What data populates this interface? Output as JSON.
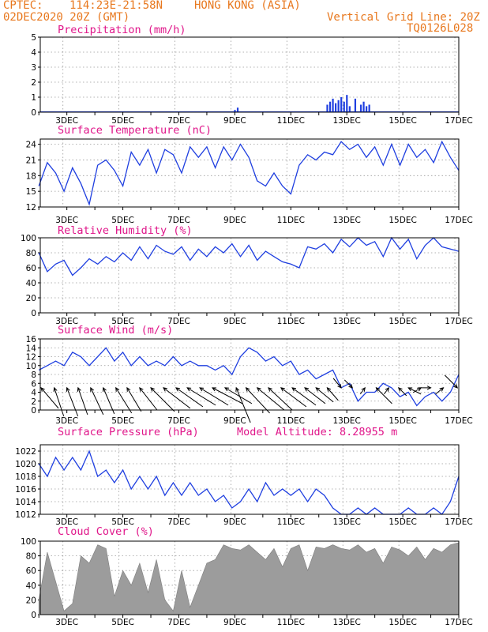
{
  "header": {
    "source": "CPTEC:",
    "coords": "114:23E-21:58N",
    "location": "HONG KONG (ASIA)",
    "datetime": "02DEC2020 20Z (GMT)",
    "grid_note": "Vertical Grid Line: 20Z",
    "code": "TQ0126L028"
  },
  "x_axis": {
    "labels": [
      "3DEC",
      "5DEC",
      "7DEC",
      "9DEC",
      "11DEC",
      "13DEC",
      "15DEC",
      "17DEC"
    ]
  },
  "colors": {
    "header": "#e8781e",
    "panel_title": "#e0168a",
    "series": "#1f3fe0",
    "cloud_fill": "#9c9c9c",
    "wind_arrows": "#000000"
  },
  "chart_data": [
    {
      "type": "bar",
      "title": "Precipitation (mm/h)",
      "ylim": [
        0,
        5
      ],
      "yticks": [
        0,
        1,
        2,
        3,
        4,
        5
      ],
      "x": [
        9.0,
        9.1,
        12.3,
        12.4,
        12.5,
        12.6,
        12.7,
        12.8,
        12.9,
        13.0,
        13.1,
        13.3,
        13.5,
        13.6,
        13.7,
        13.8
      ],
      "values": [
        0.15,
        0.3,
        0.5,
        0.7,
        0.9,
        0.6,
        0.8,
        1.0,
        0.7,
        1.15,
        0.4,
        0.9,
        0.5,
        0.7,
        0.4,
        0.5
      ]
    },
    {
      "type": "line",
      "title": "Surface Temperature (nC)",
      "ylim": [
        12,
        25
      ],
      "yticks": [
        12,
        15,
        18,
        21,
        24
      ],
      "x": [
        2.0,
        2.3,
        2.6,
        2.9,
        3.2,
        3.5,
        3.8,
        4.1,
        4.4,
        4.7,
        5.0,
        5.3,
        5.6,
        5.9,
        6.2,
        6.5,
        6.8,
        7.1,
        7.4,
        7.7,
        8.0,
        8.3,
        8.6,
        8.9,
        9.2,
        9.5,
        9.8,
        10.1,
        10.4,
        10.7,
        11.0,
        11.3,
        11.6,
        11.9,
        12.2,
        12.5,
        12.8,
        13.1,
        13.4,
        13.7,
        14.0,
        14.3,
        14.6,
        14.9,
        15.2,
        15.5,
        15.8,
        16.1,
        16.4,
        16.7,
        17.0
      ],
      "values": [
        16,
        20.5,
        18.5,
        15,
        19.5,
        16.5,
        12.5,
        20,
        21,
        19,
        16,
        22.5,
        20,
        23,
        18.5,
        23,
        22,
        18.5,
        23.5,
        21.5,
        23.5,
        19.5,
        23.5,
        21,
        24,
        21.5,
        17,
        16,
        18.5,
        16,
        14.5,
        20,
        22,
        21,
        22.5,
        22,
        24.5,
        23,
        24,
        21.5,
        23.5,
        20,
        24,
        20,
        24,
        21.5,
        23,
        20.5,
        24.5,
        21.5,
        19
      ]
    },
    {
      "type": "line",
      "title": "Relative Humidity (%)",
      "ylim": [
        0,
        100
      ],
      "yticks": [
        0,
        20,
        40,
        60,
        80,
        100
      ],
      "x": [
        2.0,
        2.3,
        2.6,
        2.9,
        3.2,
        3.5,
        3.8,
        4.1,
        4.4,
        4.7,
        5.0,
        5.3,
        5.6,
        5.9,
        6.2,
        6.5,
        6.8,
        7.1,
        7.4,
        7.7,
        8.0,
        8.3,
        8.6,
        8.9,
        9.2,
        9.5,
        9.8,
        10.1,
        10.4,
        10.7,
        11.0,
        11.3,
        11.6,
        11.9,
        12.2,
        12.5,
        12.8,
        13.1,
        13.4,
        13.7,
        14.0,
        14.3,
        14.6,
        14.9,
        15.2,
        15.5,
        15.8,
        16.1,
        16.4,
        16.7,
        17.0
      ],
      "values": [
        80,
        55,
        65,
        70,
        50,
        60,
        72,
        65,
        75,
        68,
        80,
        70,
        88,
        72,
        90,
        82,
        78,
        88,
        70,
        85,
        75,
        88,
        80,
        92,
        75,
        90,
        70,
        82,
        75,
        68,
        65,
        60,
        88,
        85,
        92,
        80,
        98,
        88,
        100,
        90,
        95,
        75,
        100,
        85,
        98,
        72,
        90,
        100,
        88,
        85,
        82
      ]
    },
    {
      "type": "line",
      "title": "Surface Wind (m/s)",
      "ylim": [
        0,
        16
      ],
      "yticks": [
        0,
        2,
        4,
        6,
        8,
        10,
        12,
        14,
        16
      ],
      "x": [
        2.0,
        2.3,
        2.6,
        2.9,
        3.2,
        3.5,
        3.8,
        4.1,
        4.4,
        4.7,
        5.0,
        5.3,
        5.6,
        5.9,
        6.2,
        6.5,
        6.8,
        7.1,
        7.4,
        7.7,
        8.0,
        8.3,
        8.6,
        8.9,
        9.2,
        9.5,
        9.8,
        10.1,
        10.4,
        10.7,
        11.0,
        11.3,
        11.6,
        11.9,
        12.2,
        12.5,
        12.8,
        13.1,
        13.4,
        13.7,
        14.0,
        14.3,
        14.6,
        14.9,
        15.2,
        15.5,
        15.8,
        16.1,
        16.4,
        16.7,
        17.0
      ],
      "values": [
        9,
        10,
        11,
        10,
        13,
        12,
        10,
        12,
        14,
        11,
        13,
        10,
        12,
        10,
        11,
        10,
        12,
        10,
        11,
        10,
        10,
        9,
        10,
        8,
        12,
        14,
        13,
        11,
        12,
        10,
        11,
        8,
        9,
        7,
        8,
        9,
        5,
        6,
        2,
        4,
        4,
        6,
        5,
        3,
        4,
        1,
        3,
        4,
        2,
        4,
        8
      ],
      "wind_arrows": [
        {
          "x": 2.08,
          "dx": 22,
          "dy": -26
        },
        {
          "x": 2.55,
          "dx": 12,
          "dy": -36
        },
        {
          "x": 3.0,
          "dx": 14,
          "dy": -36
        },
        {
          "x": 3.4,
          "dx": 12,
          "dy": -34
        },
        {
          "x": 3.85,
          "dx": 16,
          "dy": -34
        },
        {
          "x": 4.3,
          "dx": 14,
          "dy": -33
        },
        {
          "x": 4.75,
          "dx": 20,
          "dy": -32
        },
        {
          "x": 5.15,
          "dx": 18,
          "dy": -30
        },
        {
          "x": 5.6,
          "dx": 22,
          "dy": -28
        },
        {
          "x": 6.0,
          "dx": 30,
          "dy": -30
        },
        {
          "x": 6.45,
          "dx": 34,
          "dy": -26
        },
        {
          "x": 6.9,
          "dx": 34,
          "dy": -24
        },
        {
          "x": 7.3,
          "dx": 36,
          "dy": -22
        },
        {
          "x": 7.75,
          "dx": 36,
          "dy": -22
        },
        {
          "x": 8.2,
          "dx": 38,
          "dy": -20
        },
        {
          "x": 8.65,
          "dx": 34,
          "dy": -20
        },
        {
          "x": 9.05,
          "dx": 18,
          "dy": -44
        },
        {
          "x": 9.4,
          "dx": 30,
          "dy": -32
        },
        {
          "x": 9.8,
          "dx": 34,
          "dy": -28
        },
        {
          "x": 10.2,
          "dx": 30,
          "dy": -28
        },
        {
          "x": 10.65,
          "dx": 32,
          "dy": -24
        },
        {
          "x": 11.05,
          "dx": 30,
          "dy": -22
        },
        {
          "x": 11.5,
          "dx": 26,
          "dy": -20
        },
        {
          "x": 11.9,
          "dx": 22,
          "dy": -18
        },
        {
          "x": 12.3,
          "dx": 14,
          "dy": -16
        },
        {
          "x": 12.8,
          "dx": -10,
          "dy": 12
        },
        {
          "x": 13.2,
          "dx": -10,
          "dy": 10
        },
        {
          "x": 13.65,
          "dx": -6,
          "dy": -8
        },
        {
          "x": 14.05,
          "dx": 20,
          "dy": -20
        },
        {
          "x": 14.5,
          "dx": -6,
          "dy": -8
        },
        {
          "x": 14.85,
          "dx": 10,
          "dy": -10
        },
        {
          "x": 15.2,
          "dx": 16,
          "dy": -8
        },
        {
          "x": 15.65,
          "dx": -10,
          "dy": -6
        },
        {
          "x": 16.0,
          "dx": -16,
          "dy": 0
        },
        {
          "x": 16.45,
          "dx": -10,
          "dy": -8
        },
        {
          "x": 16.95,
          "dx": -16,
          "dy": 16
        }
      ]
    },
    {
      "type": "line",
      "title": "Surface Pressure (hPa)",
      "annotation": "Model Altitude: 8.28955 m",
      "ylim": [
        1012,
        1023
      ],
      "yticks": [
        1012,
        1014,
        1016,
        1018,
        1020,
        1022
      ],
      "x": [
        2.0,
        2.3,
        2.6,
        2.9,
        3.2,
        3.5,
        3.8,
        4.1,
        4.4,
        4.7,
        5.0,
        5.3,
        5.6,
        5.9,
        6.2,
        6.5,
        6.8,
        7.1,
        7.4,
        7.7,
        8.0,
        8.3,
        8.6,
        8.9,
        9.2,
        9.5,
        9.8,
        10.1,
        10.4,
        10.7,
        11.0,
        11.3,
        11.6,
        11.9,
        12.2,
        12.5,
        12.8,
        13.1,
        13.4,
        13.7,
        14.0,
        14.3,
        14.6,
        14.9,
        15.2,
        15.5,
        15.8,
        16.1,
        16.4,
        16.7,
        17.0
      ],
      "values": [
        1020,
        1018,
        1021,
        1019,
        1021,
        1019,
        1022,
        1018,
        1019,
        1017,
        1019,
        1016,
        1018,
        1016,
        1018,
        1015,
        1017,
        1015,
        1017,
        1015,
        1016,
        1014,
        1015,
        1013,
        1014,
        1016,
        1014,
        1017,
        1015,
        1016,
        1015,
        1016,
        1014,
        1016,
        1015,
        1013,
        1012,
        1012,
        1013,
        1012,
        1013,
        1012,
        1012,
        1012,
        1013,
        1012,
        1012,
        1013,
        1012,
        1014,
        1018
      ]
    },
    {
      "type": "area",
      "title": "Cloud Cover (%)",
      "ylim": [
        0,
        100
      ],
      "yticks": [
        0,
        20,
        40,
        60,
        80,
        100
      ],
      "x": [
        2.0,
        2.3,
        2.6,
        2.9,
        3.2,
        3.5,
        3.8,
        4.1,
        4.4,
        4.7,
        5.0,
        5.3,
        5.6,
        5.9,
        6.2,
        6.5,
        6.8,
        7.1,
        7.4,
        7.7,
        8.0,
        8.3,
        8.6,
        8.9,
        9.2,
        9.5,
        9.8,
        10.1,
        10.4,
        10.7,
        11.0,
        11.3,
        11.6,
        11.9,
        12.2,
        12.5,
        12.8,
        13.1,
        13.4,
        13.7,
        14.0,
        14.3,
        14.6,
        14.9,
        15.2,
        15.5,
        15.8,
        16.1,
        16.4,
        16.7,
        17.0
      ],
      "values": [
        20,
        85,
        45,
        5,
        15,
        80,
        70,
        95,
        90,
        25,
        60,
        40,
        70,
        30,
        75,
        20,
        5,
        60,
        10,
        40,
        70,
        75,
        95,
        90,
        88,
        95,
        85,
        75,
        90,
        65,
        90,
        95,
        60,
        92,
        90,
        95,
        90,
        88,
        95,
        85,
        90,
        70,
        92,
        88,
        80,
        92,
        75,
        90,
        85,
        95,
        98
      ]
    }
  ]
}
